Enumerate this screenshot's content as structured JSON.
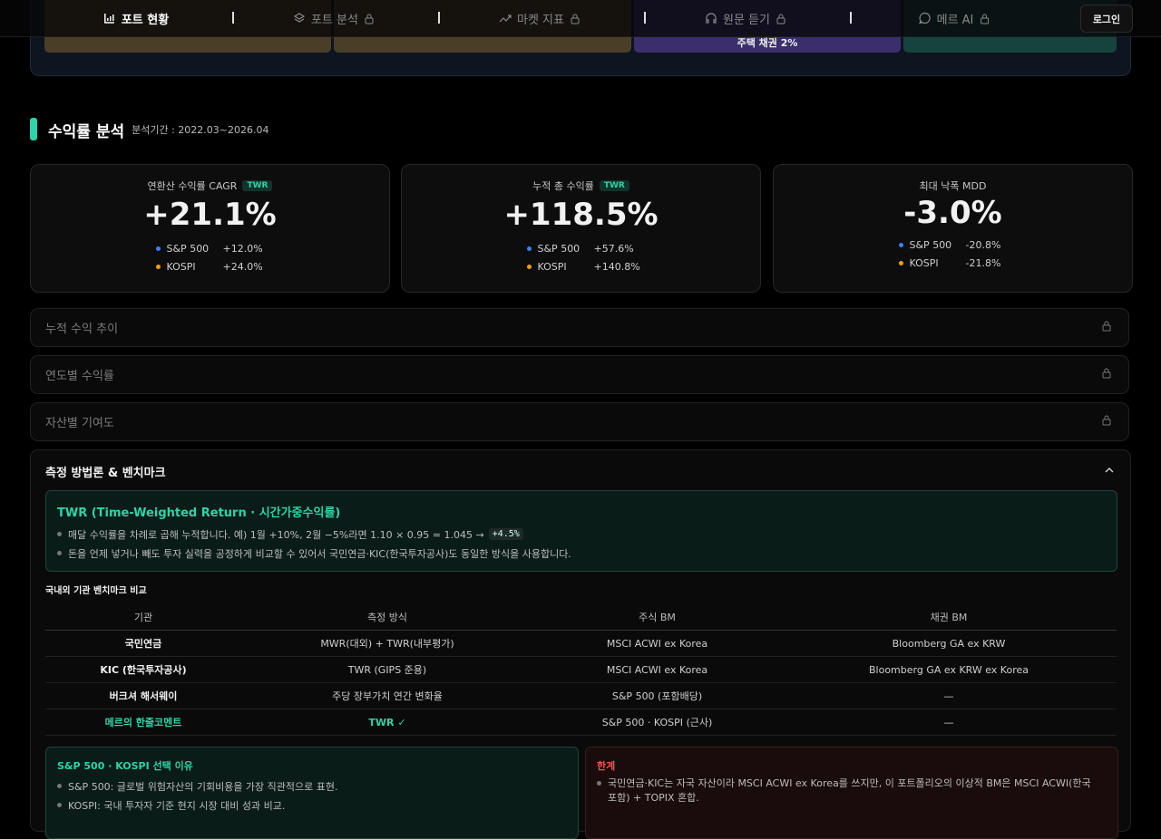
{
  "nav": {
    "items": [
      "포트 현황",
      "포트 분석",
      "마켓 지표",
      "원문 듣기",
      "메르 AI"
    ],
    "login": "로그인"
  },
  "allocation": {
    "visible_label": "주택 채권 2%"
  },
  "returns": {
    "title": "수익률 분석",
    "period": "분석기간 : 2022.03~2026.04",
    "cards": [
      {
        "label": "연환산 수익률 CAGR",
        "badge": "TWR",
        "value": "+21.1%",
        "benchmarks": [
          {
            "name": "S&P 500",
            "value": "+12.0%"
          },
          {
            "name": "KOSPI",
            "value": "+24.0%"
          }
        ]
      },
      {
        "label": "누적 총 수익률",
        "badge": "TWR",
        "value": "+118.5%",
        "benchmarks": [
          {
            "name": "S&P 500",
            "value": "+57.6%"
          },
          {
            "name": "KOSPI",
            "value": "+140.8%"
          }
        ]
      },
      {
        "label": "최대 낙폭 MDD",
        "value": "-3.0%",
        "benchmarks": [
          {
            "name": "S&P 500",
            "value": "-20.8%"
          },
          {
            "name": "KOSPI",
            "value": "-21.8%"
          }
        ]
      }
    ],
    "sections": [
      "누적 수익 추이",
      "연도별 수익률",
      "자산별 기여도"
    ]
  },
  "methodology": {
    "title": "측정 방법론 & 벤치마크",
    "twr": {
      "title": "TWR (Time-Weighted Return · 시간가중수익률)",
      "bullets": [
        {
          "text": "매달 수익률을 차례로 곱해 누적합니다. 예) 1월 +10%, 2월 −5%라면 1.10 × 0.95 = 1.045 →",
          "code": "+4.5%"
        },
        {
          "text": "돈을 언제 넣거나 빼도 투자 실력을 공정하게 비교할 수 있어서 국민연금·KIC(한국투자공사)도 동일한 방식을 사용합니다."
        }
      ]
    },
    "table": {
      "title": "국내외 기관 벤치마크 비교",
      "headers": [
        "기관",
        "측정 방식",
        "주식 BM",
        "채권 BM"
      ],
      "rows": [
        [
          "국민연금",
          "MWR(대외) + TWR(내부평가)",
          "MSCI ACWI ex Korea",
          "Bloomberg GA ex KRW"
        ],
        [
          "KIC (한국투자공사)",
          "TWR (GIPS 준용)",
          "MSCI ACWI ex Korea",
          "Bloomberg GA ex KRW ex Korea"
        ],
        [
          "버크셔 해서웨이",
          "주당 장부가치 연간 변화율",
          "S&P 500 (포함배당)",
          "—"
        ],
        [
          "메르의 한줄코멘트",
          "TWR ✓",
          "S&P 500 · KOSPI (근사)",
          "—"
        ]
      ]
    },
    "reason": {
      "title": "S&P 500 · KOSPI 선택 이유",
      "bullets": [
        "S&P 500: 글로벌 위험자산의 기회비용을 가장 직관적으로 표현.",
        "KOSPI: 국내 투자자 기준 현지 시장 대비 성과 비교."
      ]
    },
    "limits": {
      "title": "한계",
      "bullets": [
        "국민연금·KIC는 자국 자산이라 MSCI ACWI ex Korea를 쓰지만, 이 포트폴리오의 이상적 BM은 MSCI ACWI(한국 포함) + TOPIX 혼합."
      ]
    }
  }
}
